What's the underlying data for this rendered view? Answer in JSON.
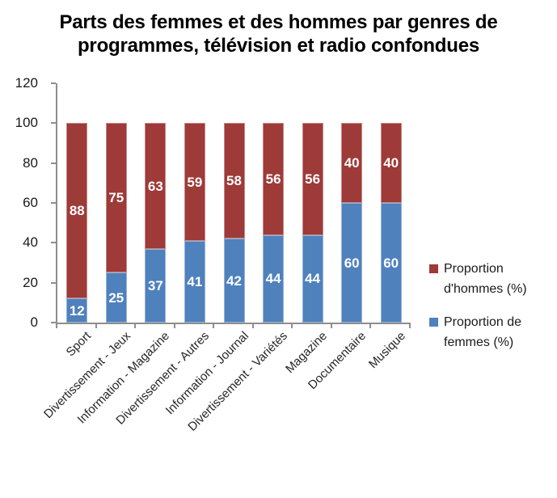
{
  "title": {
    "line1": "Parts des femmes et des hommes par genres de",
    "line2": "programmes, télévision et radio confondues"
  },
  "chart_data": {
    "type": "bar",
    "stacked": true,
    "title": "Parts des femmes et des hommes par genres de programmes, télévision et radio confondues",
    "categories": [
      "Sport",
      "Divertissement - Jeux",
      "Information - Magazine",
      "Divertissement - Autres",
      "Information - Journal",
      "Divertissement - Variétés",
      "Magazine",
      "Documentaire",
      "Musique"
    ],
    "series": [
      {
        "name": "Proportion de femmes (%)",
        "color": "#4F81BD",
        "values": [
          12,
          25,
          37,
          41,
          42,
          44,
          44,
          60,
          60
        ]
      },
      {
        "name": "Proportion d'hommes (%)",
        "color": "#9E3A38",
        "values": [
          88,
          75,
          63,
          59,
          58,
          56,
          56,
          40,
          40
        ]
      }
    ],
    "xlabel": "",
    "ylabel": "",
    "ylim": [
      0,
      120
    ],
    "yticks": [
      0,
      20,
      40,
      60,
      80,
      100,
      120
    ],
    "grid": false,
    "legend_position": "right",
    "data_labels": "inside center, white bold"
  },
  "legend": {
    "items": [
      {
        "label": "Proportion d'hommes (%)",
        "color": "#9E3A38"
      },
      {
        "label": "Proportion de femmes (%)",
        "color": "#4F81BD"
      }
    ]
  },
  "colors": {
    "axis": "#8E8E8E",
    "axis_text": "#1A1A1A",
    "category_text": "#262626",
    "title_text": "#000000",
    "data_label_text": "#FFFFFF",
    "background": "#FFFFFF"
  }
}
